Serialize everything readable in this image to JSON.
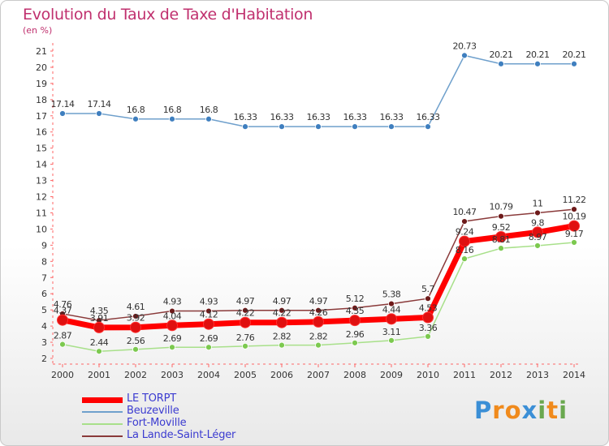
{
  "title": "Evolution du Taux de Taxe d'Habitation",
  "subtitle": "(en %)",
  "logo": {
    "text": [
      "P",
      "r",
      "o",
      "x",
      "i",
      "t",
      "i"
    ],
    "colors": [
      "#3b8fd6",
      "#f08a1c",
      "#f08a1c",
      "#3b8fd6",
      "#6aa84f",
      "#f08a1c",
      "#6aa84f"
    ]
  },
  "chart_data": {
    "type": "line",
    "categories": [
      "2000",
      "2001",
      "2002",
      "2003",
      "2004",
      "2005",
      "2006",
      "2007",
      "2008",
      "2009",
      "2010",
      "2011",
      "2012",
      "2013",
      "2014"
    ],
    "ylim": [
      2,
      21
    ],
    "yticks": [
      "2",
      "3",
      "4",
      "5",
      "6",
      "7",
      "8",
      "9",
      "10",
      "11",
      "12",
      "13",
      "14",
      "15",
      "16",
      "17",
      "18",
      "19",
      "20",
      "21"
    ],
    "grid": false,
    "legend_position": "bottom-left",
    "series": [
      {
        "name": "LE TORPT",
        "color": "#ff0000",
        "marker": "#e01010",
        "width": 7,
        "labels": true,
        "values": [
          4.37,
          3.91,
          3.92,
          4.04,
          4.12,
          4.22,
          4.22,
          4.26,
          4.35,
          4.44,
          4.53,
          9.24,
          9.52,
          9.8,
          10.19
        ],
        "labels_text": [
          "4.37",
          "3.91",
          "3.92",
          "4.04",
          "4.12",
          "4.22",
          "4.22",
          "4.26",
          "4.35",
          "4.44",
          "4.53",
          "9.24",
          "9.52",
          "9.8",
          "10.19"
        ]
      },
      {
        "name": "Beuzeville",
        "color": "#6fa0cc",
        "marker": "#3f7fbf",
        "width": 1.5,
        "labels": true,
        "values": [
          17.14,
          17.14,
          16.8,
          16.8,
          16.8,
          16.33,
          16.33,
          16.33,
          16.33,
          16.33,
          16.33,
          20.73,
          20.21,
          20.21,
          20.21
        ],
        "labels_text": [
          "17.14",
          "17.14",
          "16.8",
          "16.8",
          "16.8",
          "16.33",
          "16.33",
          "16.33",
          "16.33",
          "16.33",
          "16.33",
          "20.73",
          "20.21",
          "20.21",
          "20.21"
        ]
      },
      {
        "name": "Fort-Moville",
        "color": "#a8e08a",
        "marker": "#7cc94f",
        "width": 1.5,
        "labels": true,
        "values": [
          2.87,
          2.44,
          2.56,
          2.69,
          2.69,
          2.76,
          2.82,
          2.82,
          2.96,
          3.11,
          3.36,
          8.16,
          8.81,
          8.97,
          9.17
        ],
        "labels_text": [
          "2.87",
          "2.44",
          "2.56",
          "2.69",
          "2.69",
          "2.76",
          "2.82",
          "2.82",
          "2.96",
          "3.11",
          "3.36",
          "8.16",
          "8.81",
          "8.97",
          "9.17"
        ]
      },
      {
        "name": "La Lande-Saint-Léger",
        "color": "#8a3a3a",
        "marker": "#6e1a1a",
        "width": 1.5,
        "labels": true,
        "values": [
          4.76,
          4.35,
          4.61,
          4.93,
          4.93,
          4.97,
          4.97,
          4.97,
          5.12,
          5.38,
          5.7,
          10.47,
          10.79,
          11,
          11.22
        ],
        "labels_text": [
          "4.76",
          "4.35",
          "4.61",
          "4.93",
          "4.93",
          "4.97",
          "4.97",
          "4.97",
          "5.12",
          "5.38",
          "5.7",
          "10.47",
          "10.79",
          "11",
          "11.22"
        ]
      }
    ]
  }
}
